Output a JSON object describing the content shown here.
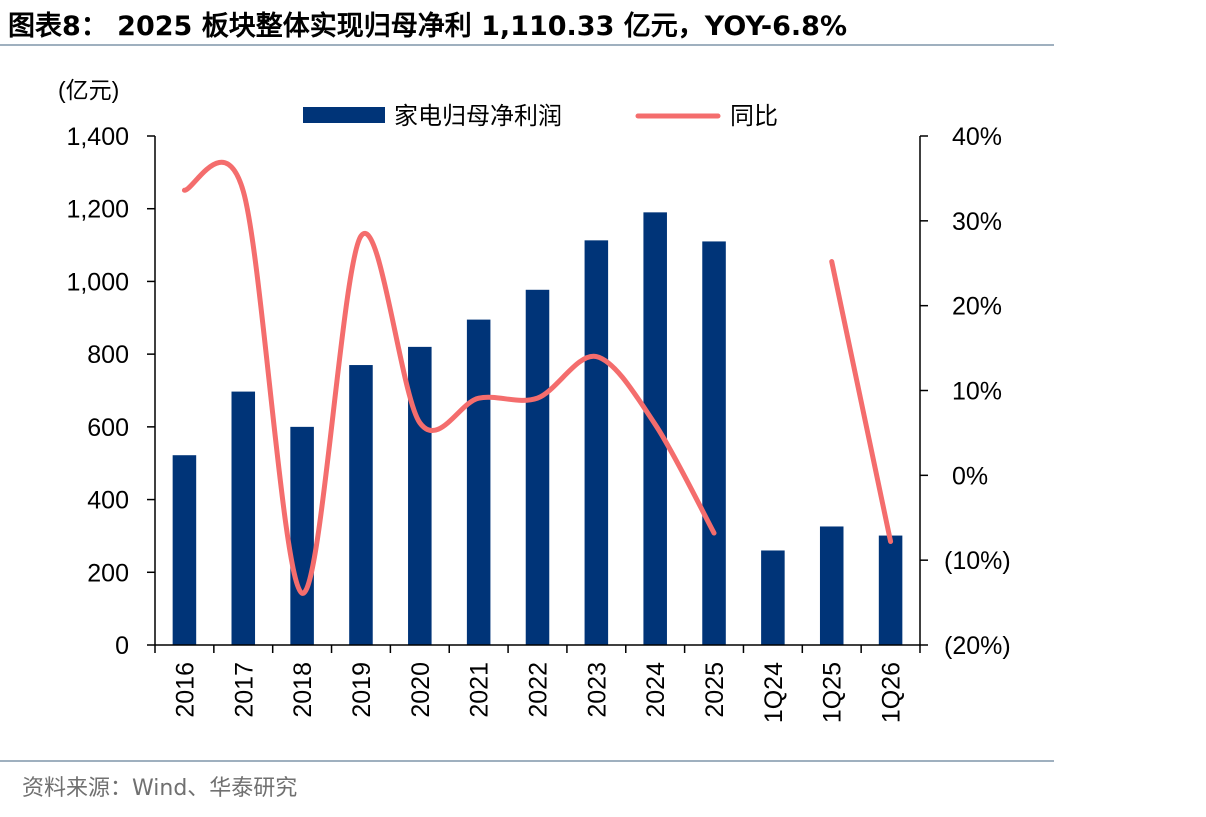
{
  "page_title": "图表8： 2025 板块整体实现归母净利 1,110.33 亿元，YOY-6.8%",
  "source_note": "资料来源：Wind、华泰研究",
  "chart_data": {
    "type": "bar",
    "unit_label": "(亿元)",
    "categories": [
      "2016",
      "2017",
      "2018",
      "2019",
      "2020",
      "2021",
      "2022",
      "2023",
      "2024",
      "2025",
      "1Q24",
      "1Q25",
      "1Q26"
    ],
    "ylim": [
      0,
      1400
    ],
    "y_ticks": [
      "0",
      "200",
      "400",
      "600",
      "800",
      "1,000",
      "1,200",
      "1,400"
    ],
    "y2lim": [
      -20,
      40
    ],
    "y2_ticks": [
      "(20%)",
      "(10%)",
      "0%",
      "10%",
      "20%",
      "30%",
      "40%"
    ],
    "legend_position": "top",
    "grid": false,
    "series": [
      {
        "name": "家电归母净利润",
        "type": "bar",
        "axis": "left",
        "color": "#003478",
        "values": [
          522,
          697,
          600,
          770,
          820,
          895,
          977,
          1113,
          1190,
          1110,
          260,
          326,
          301
        ]
      },
      {
        "name": "同比",
        "type": "line",
        "axis": "right",
        "color": "#f46d6d",
        "segments": [
          {
            "categories": [
              "2016",
              "2017",
              "2018",
              "2019",
              "2020",
              "2021",
              "2022",
              "2023",
              "2024",
              "2025"
            ],
            "values": [
              33.6,
              33.5,
              -13.9,
              28.2,
              6.2,
              9.1,
              9.1,
              14.0,
              6.0,
              -6.8
            ]
          },
          {
            "categories": [
              "1Q25",
              "1Q26"
            ],
            "values": [
              25.2,
              -7.8
            ]
          }
        ]
      }
    ]
  }
}
